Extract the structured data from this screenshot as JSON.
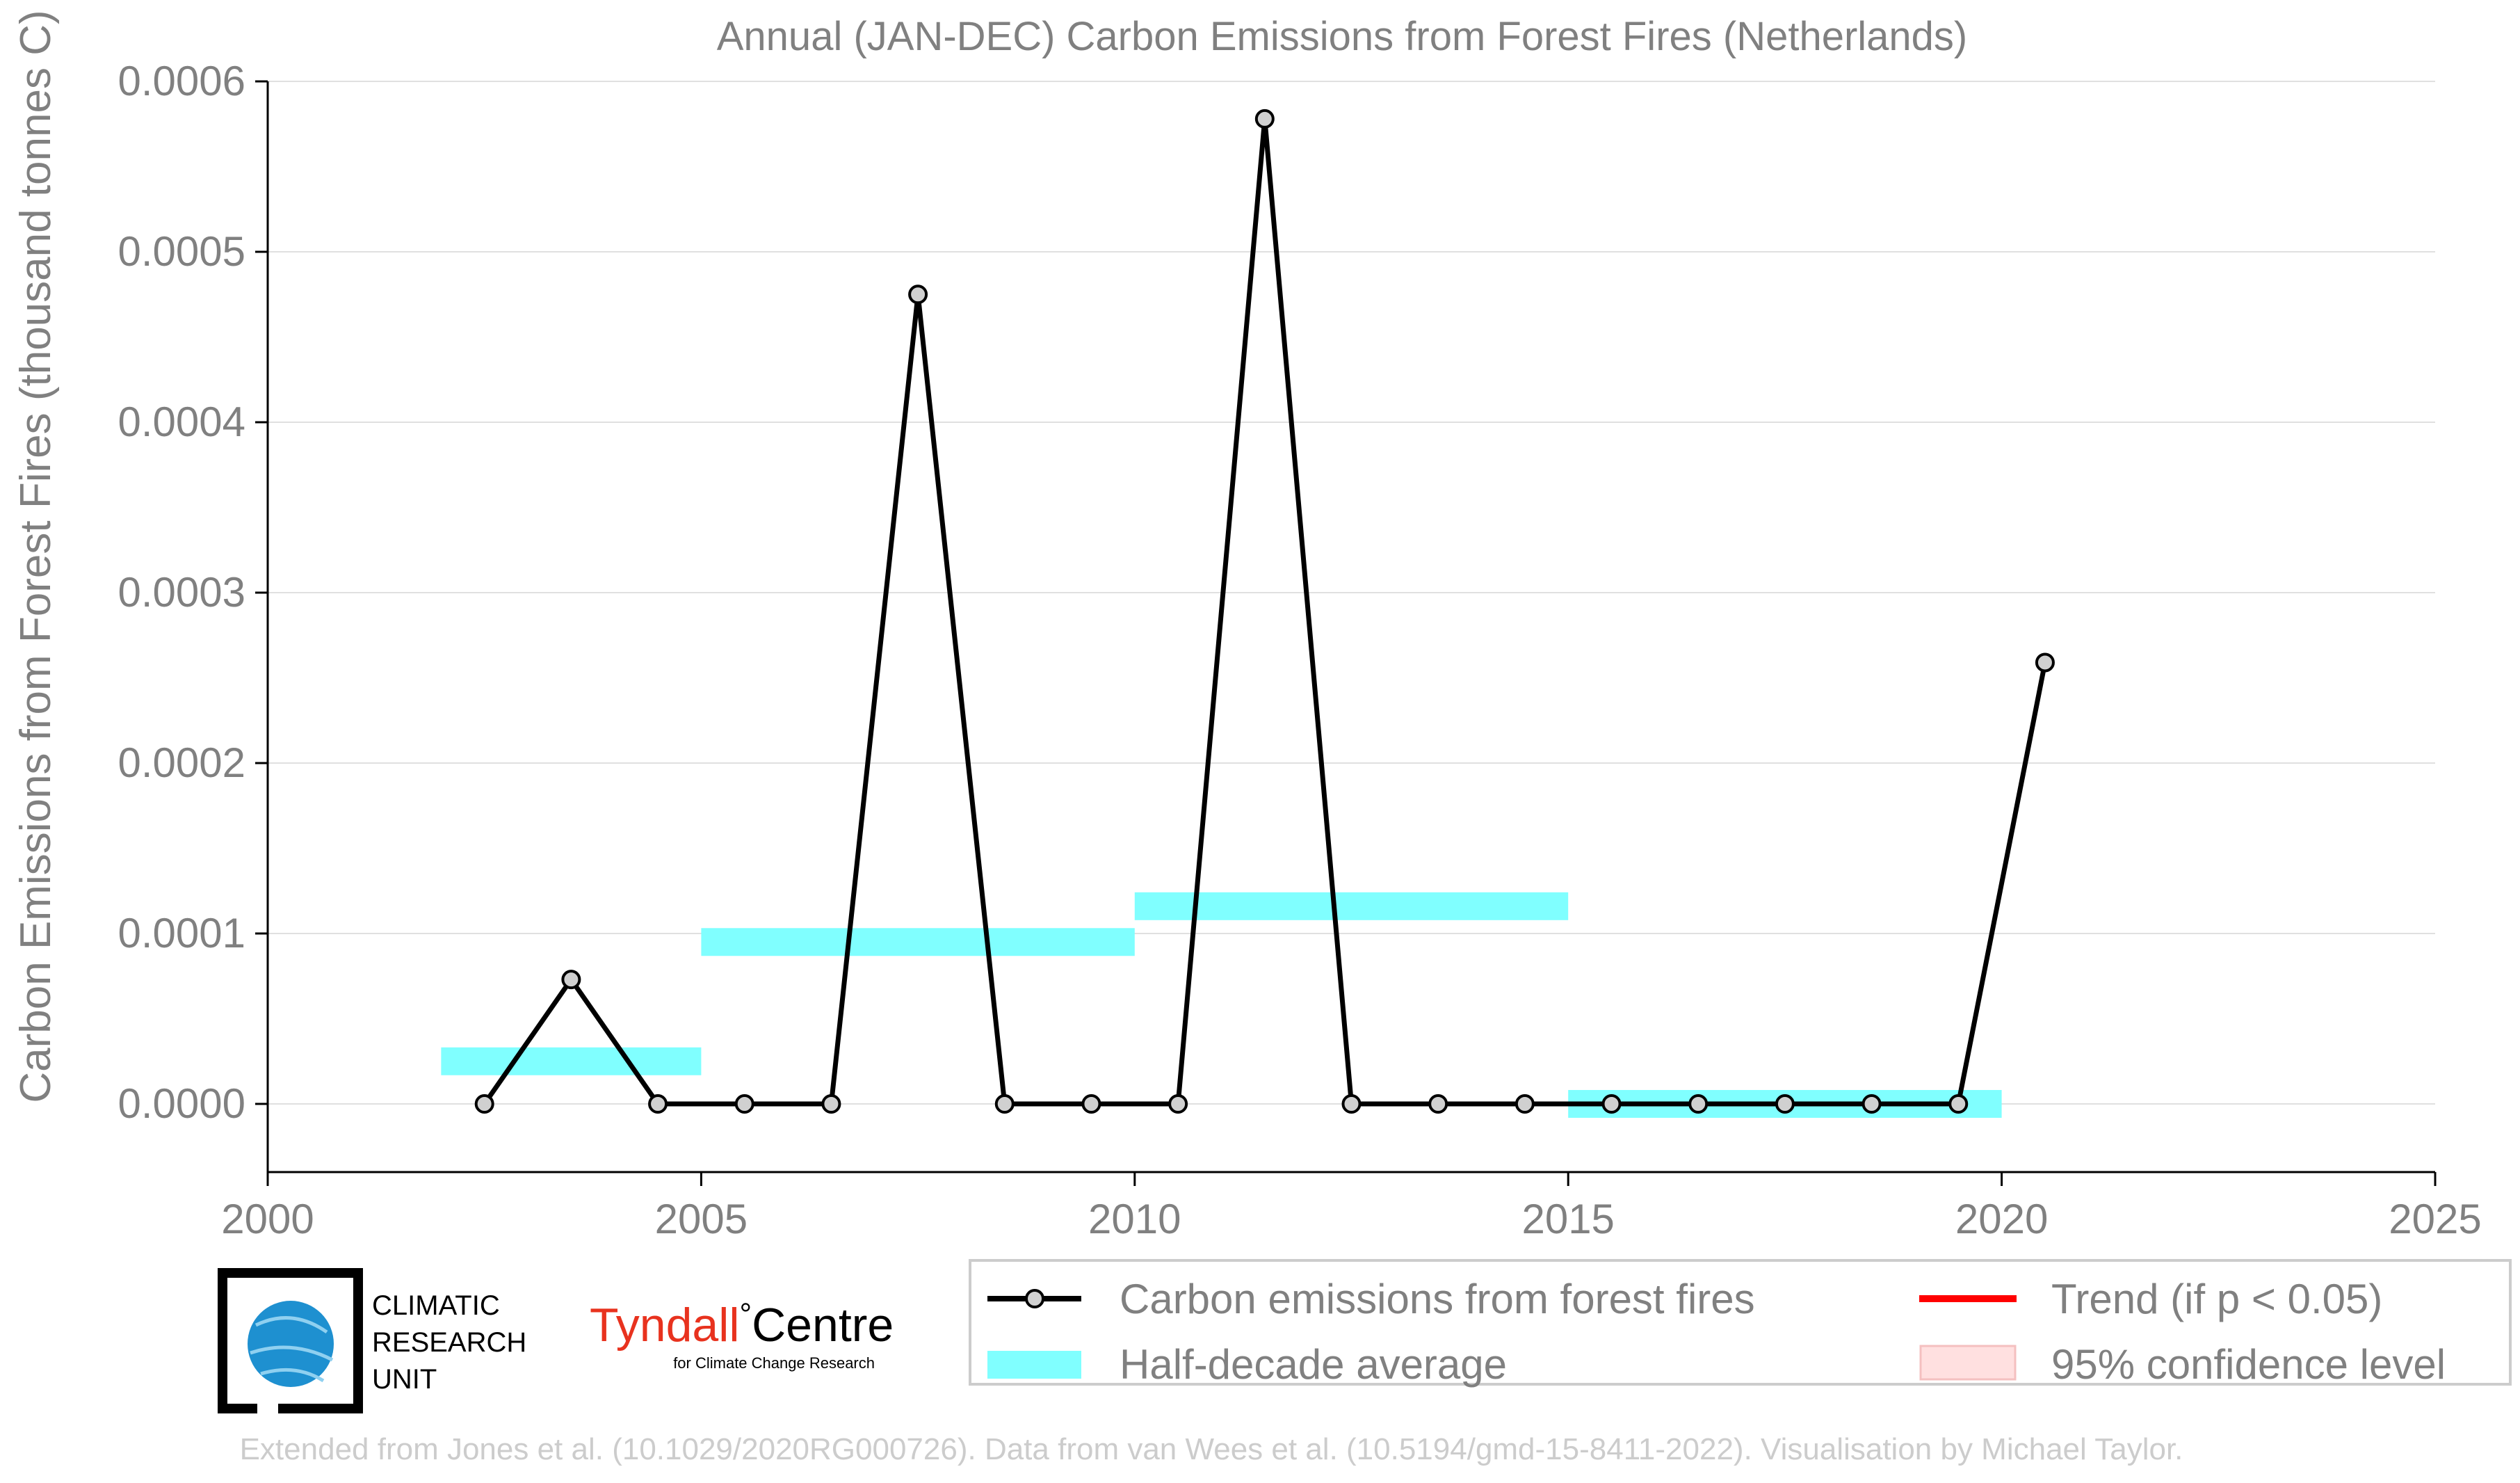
{
  "colors": {
    "series_line": "#000000",
    "marker_fill": "#d0d0d0",
    "half_decade": "#80ffff",
    "trend": "#ff0000",
    "confidence": "#ffe0e0",
    "text": "#808080",
    "grid": "#e0e0e0",
    "tyndall_red": "#e8321e",
    "cru_blue": "#1e90d0"
  },
  "chart_data": {
    "type": "line",
    "title": "Annual (JAN-DEC) Carbon Emissions from Forest Fires (Netherlands)",
    "xlabel": "",
    "ylabel": "Carbon Emissions from Forest Fires (thousand tonnes C)",
    "xlim": [
      2000,
      2025
    ],
    "ylim": [
      -4e-05,
      0.0006
    ],
    "x_ticks": [
      "2000",
      "2005",
      "2010",
      "2015",
      "2020",
      "2025"
    ],
    "x_tick_values": [
      2000,
      2005,
      2010,
      2015,
      2020,
      2025
    ],
    "y_ticks": [
      "0.0000",
      "0.0001",
      "0.0002",
      "0.0003",
      "0.0004",
      "0.0005",
      "0.0006"
    ],
    "y_tick_values": [
      0,
      0.0001,
      0.0002,
      0.0003,
      0.0004,
      0.0005,
      0.0006
    ],
    "grid": "horizontal",
    "series": [
      {
        "name": "Carbon emissions from forest fires",
        "x": [
          2002.5,
          2003.5,
          2004.5,
          2005.5,
          2006.5,
          2007.5,
          2008.5,
          2009.5,
          2010.5,
          2011.5,
          2012.5,
          2013.5,
          2014.5,
          2015.5,
          2016.5,
          2017.5,
          2018.5,
          2019.5,
          2020.5
        ],
        "values": [
          0,
          7.3e-05,
          0,
          0,
          0,
          0.000475,
          0,
          0,
          0,
          0.000578,
          0,
          0,
          0,
          0,
          0,
          0,
          0,
          0,
          0.000259
        ]
      }
    ],
    "half_decade_average": [
      {
        "x_start": 2002,
        "x_end": 2005,
        "value": 2.5e-05
      },
      {
        "x_start": 2005,
        "x_end": 2010,
        "value": 9.5e-05
      },
      {
        "x_start": 2010,
        "x_end": 2015,
        "value": 0.000116
      },
      {
        "x_start": 2015,
        "x_end": 2020,
        "value": 0.0
      }
    ],
    "legend_position": "bottom-right",
    "legend": [
      {
        "label": "Carbon emissions from forest fires",
        "symbol": "line-marker"
      },
      {
        "label": "Trend (if p < 0.05)",
        "symbol": "red-line"
      },
      {
        "label": "Half-decade average",
        "symbol": "cyan-band"
      },
      {
        "label": "95% confidence level",
        "symbol": "pink-box"
      }
    ]
  },
  "logos": {
    "cru_lines": [
      "CLIMATIC",
      "RESEARCH",
      "UNIT"
    ],
    "tyndall_name": "Tyndall",
    "tyndall_degree": "°",
    "tyndall_centre": "Centre",
    "tyndall_sub": "for Climate Change Research"
  },
  "credit": "Extended from Jones et al. (10.1029/2020RG000726). Data from van Wees et al. (10.5194/gmd-15-8411-2022). Visualisation by Michael Taylor."
}
